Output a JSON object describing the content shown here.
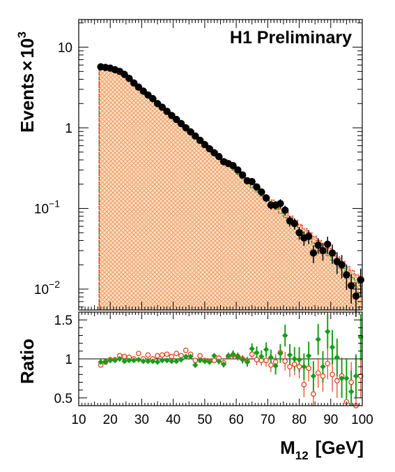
{
  "chart_data": [
    {
      "type": "line",
      "panel": "main",
      "watermark": "H1 Preliminary",
      "ylabel": "Events",
      "ylabel_factor": "×",
      "ylabel_scale": "10",
      "ylabel_exponent": "3",
      "y_scale": "log",
      "xlim": [
        10,
        100
      ],
      "ylim": [
        0.0055,
        22
      ],
      "y_tick_labels": [
        {
          "value": 10,
          "base": "10",
          "exp": ""
        },
        {
          "value": 1,
          "base": "1",
          "exp": ""
        },
        {
          "value": 0.1,
          "base": "10",
          "exp": "−1"
        },
        {
          "value": 0.01,
          "base": "10",
          "exp": "−2"
        }
      ],
      "fill_color": "#f2b27f",
      "series": [
        {
          "kind": "points",
          "color": "#000000",
          "x": [
            17,
            18.5,
            20,
            21.5,
            23,
            24.5,
            26,
            27.5,
            29,
            30.5,
            32,
            33.5,
            35,
            36.5,
            38,
            39.5,
            41,
            42.5,
            44,
            45.5,
            47,
            48.5,
            50,
            51.5,
            53,
            54.5,
            56,
            57.5,
            59,
            60.5,
            62,
            63.5,
            65,
            66.5,
            68,
            69.5,
            71,
            72.5,
            74,
            75.5,
            77,
            78.5,
            80,
            81.5,
            83,
            84.5,
            86,
            87.5,
            89,
            90.5,
            92,
            93.5,
            95,
            96.5,
            98,
            99.5
          ],
          "y": [
            5.7,
            5.6,
            5.5,
            5.25,
            5.0,
            4.6,
            4.1,
            3.6,
            3.2,
            2.85,
            2.55,
            2.3,
            2.0,
            1.8,
            1.6,
            1.42,
            1.27,
            1.13,
            1.0,
            0.89,
            0.79,
            0.7,
            0.62,
            0.55,
            0.49,
            0.44,
            0.38,
            0.36,
            0.34,
            0.3,
            0.26,
            0.22,
            0.215,
            0.185,
            0.16,
            0.135,
            0.11,
            0.11,
            0.115,
            0.095,
            0.07,
            0.065,
            0.05,
            0.043,
            0.045,
            0.028,
            0.035,
            0.03,
            0.036,
            0.028,
            0.022,
            0.02,
            0.015,
            0.011,
            0.0082,
            0.013
          ],
          "yerr_rel": [
            0.05,
            0.05,
            0.05,
            0.05,
            0.05,
            0.05,
            0.05,
            0.05,
            0.05,
            0.05,
            0.05,
            0.05,
            0.05,
            0.05,
            0.05,
            0.05,
            0.05,
            0.05,
            0.05,
            0.05,
            0.06,
            0.06,
            0.06,
            0.06,
            0.06,
            0.07,
            0.07,
            0.07,
            0.08,
            0.08,
            0.08,
            0.09,
            0.09,
            0.1,
            0.1,
            0.11,
            0.12,
            0.12,
            0.13,
            0.14,
            0.15,
            0.16,
            0.18,
            0.2,
            0.2,
            0.25,
            0.22,
            0.25,
            0.24,
            0.27,
            0.3,
            0.32,
            0.35,
            0.4,
            0.45,
            0.38
          ]
        },
        {
          "kind": "histogram",
          "line_style": "dotted",
          "color": "#e5401e",
          "edges": [
            16.5,
            18,
            19.5,
            21,
            22.5,
            24,
            25.5,
            27,
            28.5,
            30,
            31.5,
            33,
            34.5,
            36,
            37.5,
            39,
            40.5,
            42,
            43.5,
            45,
            46.5,
            48,
            49.5,
            51,
            52.5,
            54,
            55.5,
            57,
            58.5,
            60,
            61.5,
            63,
            64.5,
            66,
            67.5,
            69,
            70.5,
            72,
            73.5,
            75,
            76.5,
            78,
            79.5,
            81,
            82.5,
            84,
            85.5,
            87,
            88.5,
            90,
            91.5,
            93,
            94.5,
            96,
            97.5,
            99,
            100
          ],
          "values": [
            6.0,
            5.8,
            5.55,
            5.3,
            5.0,
            4.55,
            4.05,
            3.6,
            3.2,
            2.85,
            2.55,
            2.3,
            2.05,
            1.8,
            1.6,
            1.43,
            1.28,
            1.14,
            1.02,
            0.91,
            0.81,
            0.72,
            0.64,
            0.57,
            0.51,
            0.455,
            0.405,
            0.36,
            0.32,
            0.285,
            0.255,
            0.228,
            0.203,
            0.18,
            0.16,
            0.142,
            0.127,
            0.113,
            0.1,
            0.089,
            0.08,
            0.071,
            0.063,
            0.056,
            0.05,
            0.045,
            0.04,
            0.036,
            0.032,
            0.028,
            0.025,
            0.022,
            0.019,
            0.017,
            0.015,
            0.013
          ]
        },
        {
          "kind": "histogram",
          "line_style": "dashed",
          "color": "#1a8c1a",
          "edges": [
            16.5,
            18,
            19.5,
            21,
            22.5,
            24,
            25.5,
            27,
            28.5,
            30,
            31.5,
            33,
            34.5,
            36,
            37.5,
            39,
            40.5,
            42,
            43.5,
            45,
            46.5,
            48,
            49.5,
            51,
            52.5,
            54,
            55.5,
            57,
            58.5,
            60,
            61.5,
            63,
            64.5,
            66,
            67.5,
            69,
            70.5,
            72,
            73.5,
            75,
            76.5,
            78,
            79.5,
            81,
            82.5,
            84,
            85.5,
            87,
            88.5,
            90,
            91.5,
            93,
            94.5,
            96,
            97.5,
            99,
            100
          ],
          "values": [
            5.9,
            5.75,
            5.55,
            5.3,
            5.0,
            4.6,
            4.1,
            3.65,
            3.25,
            2.9,
            2.6,
            2.35,
            2.08,
            1.85,
            1.65,
            1.47,
            1.31,
            1.17,
            1.04,
            0.92,
            0.82,
            0.72,
            0.64,
            0.56,
            0.5,
            0.44,
            0.39,
            0.34,
            0.3,
            0.265,
            0.235,
            0.205,
            0.18,
            0.16,
            0.142,
            0.125,
            0.11,
            0.098,
            0.087,
            0.077,
            0.068,
            0.06,
            0.053,
            0.047,
            0.042,
            0.037,
            0.033,
            0.029,
            0.026,
            0.023,
            0.02,
            0.018,
            0.016,
            0.014,
            0.012,
            0.011
          ]
        }
      ]
    },
    {
      "type": "scatter",
      "panel": "ratio",
      "ylabel": "Ratio",
      "xlabel": "M",
      "xlabel_sub": "12",
      "xlabel_unit": "[GeV]",
      "xlim": [
        10,
        100
      ],
      "ylim": [
        0.4,
        1.6
      ],
      "reference_line": 1,
      "x_ticks": [
        10,
        20,
        30,
        40,
        50,
        60,
        70,
        80,
        90,
        100
      ],
      "y_ticks": [
        0.5,
        1,
        1.5
      ],
      "y_tick_labels": [
        "0.5",
        "1",
        "1.5"
      ],
      "series": [
        {
          "kind": "open-circles",
          "color": "#e5401e",
          "x": [
            17,
            18.5,
            20,
            21.5,
            23,
            24.5,
            26,
            27.5,
            29,
            30.5,
            32,
            33.5,
            35,
            36.5,
            38,
            39.5,
            41,
            42.5,
            44,
            45.5,
            47,
            48.5,
            50,
            51.5,
            53,
            54.5,
            56,
            57.5,
            59,
            60.5,
            62,
            63.5,
            65,
            66.5,
            68,
            69.5,
            71,
            72.5,
            74,
            75.5,
            77,
            78.5,
            80,
            81.5,
            83,
            84.5,
            86,
            87.5,
            89,
            90.5,
            92,
            93.5,
            95,
            96.5,
            98,
            99.5
          ],
          "y": [
            0.92,
            0.96,
            0.99,
            0.99,
            1.04,
            1.03,
            1.02,
            1.0,
            1.07,
            1.0,
            1.05,
            1.0,
            1.04,
            1.05,
            1.06,
            1.03,
            1.07,
            1.04,
            1.11,
            1.06,
            0.98,
            1.04,
            0.98,
            0.97,
            0.98,
            1.01,
            0.95,
            1.03,
            1.05,
            1.03,
            1.0,
            0.97,
            1.06,
            0.99,
            0.98,
            0.98,
            0.92,
            0.96,
            1.08,
            0.97,
            0.9,
            0.93,
            0.9,
            0.67,
            0.88,
            0.55,
            0.82,
            0.78,
            0.94,
            0.8,
            0.72,
            0.78,
            0.45,
            0.7,
            0.4,
            0.78
          ],
          "yerr": [
            0.02,
            0.02,
            0.02,
            0.02,
            0.02,
            0.02,
            0.02,
            0.02,
            0.02,
            0.02,
            0.02,
            0.02,
            0.02,
            0.02,
            0.02,
            0.02,
            0.02,
            0.02,
            0.02,
            0.02,
            0.03,
            0.03,
            0.03,
            0.03,
            0.03,
            0.04,
            0.04,
            0.04,
            0.05,
            0.05,
            0.05,
            0.06,
            0.06,
            0.07,
            0.07,
            0.08,
            0.09,
            0.1,
            0.11,
            0.12,
            0.13,
            0.14,
            0.15,
            0.16,
            0.17,
            0.18,
            0.19,
            0.2,
            0.2,
            0.22,
            0.22,
            0.24,
            0.25,
            0.26,
            0.27,
            0.28
          ]
        },
        {
          "kind": "filled-diamonds",
          "color": "#1a9c1a",
          "x": [
            17,
            18.5,
            20,
            21.5,
            23,
            24.5,
            26,
            27.5,
            29,
            30.5,
            32,
            33.5,
            35,
            36.5,
            38,
            39.5,
            41,
            42.5,
            44,
            45.5,
            47,
            48.5,
            50,
            51.5,
            53,
            54.5,
            56,
            57.5,
            59,
            60.5,
            62,
            63.5,
            65,
            66.5,
            68,
            69.5,
            71,
            72.5,
            74,
            75.5,
            77,
            78.5,
            80,
            81.5,
            83,
            84.5,
            86,
            87.5,
            89,
            90.5,
            92,
            93.5,
            95,
            96.5,
            98,
            99.5
          ],
          "y": [
            0.96,
            0.96,
            0.98,
            0.98,
            1.0,
            0.97,
            0.98,
            0.98,
            0.99,
            0.97,
            0.97,
            0.97,
            0.96,
            0.98,
            0.98,
            0.97,
            0.97,
            0.99,
            1.03,
            1.03,
            0.92,
            0.98,
            0.97,
            0.96,
            1.04,
            0.97,
            0.93,
            1.04,
            1.06,
            1.03,
            0.99,
            0.96,
            1.13,
            1.08,
            1.03,
            1.12,
            1.02,
            0.91,
            1.07,
            1.3,
            1.05,
            1.0,
            0.99,
            0.9,
            1.04,
            0.78,
            1.25,
            0.9,
            1.35,
            1.15,
            1.02,
            0.75,
            0.75,
            0.58,
            0.78,
            1.28
          ],
          "yerr": [
            0.02,
            0.02,
            0.02,
            0.02,
            0.02,
            0.02,
            0.02,
            0.02,
            0.02,
            0.02,
            0.02,
            0.02,
            0.02,
            0.02,
            0.02,
            0.02,
            0.02,
            0.02,
            0.02,
            0.02,
            0.03,
            0.03,
            0.03,
            0.03,
            0.03,
            0.04,
            0.04,
            0.04,
            0.05,
            0.05,
            0.05,
            0.06,
            0.07,
            0.08,
            0.08,
            0.09,
            0.1,
            0.11,
            0.12,
            0.14,
            0.14,
            0.15,
            0.16,
            0.17,
            0.18,
            0.19,
            0.2,
            0.2,
            0.22,
            0.22,
            0.24,
            0.25,
            0.26,
            0.27,
            0.28,
            0.3
          ]
        }
      ]
    }
  ]
}
